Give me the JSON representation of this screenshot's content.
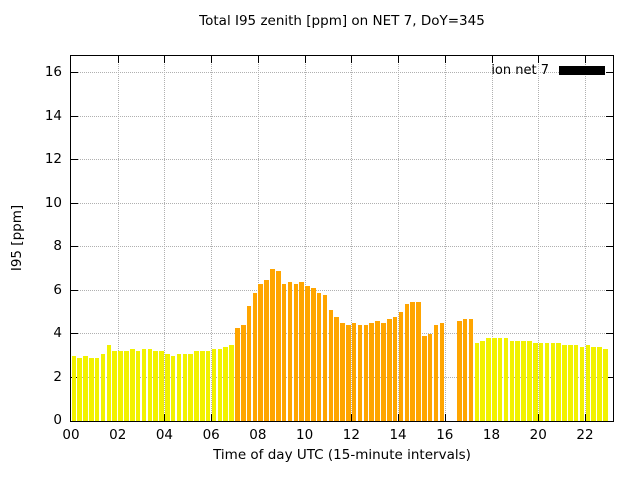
{
  "chart_data": {
    "type": "bar",
    "title": "Total I95 zenith [ppm] on NET 7, DoY=345",
    "xlabel": "Time of day UTC (15-minute intervals)",
    "ylabel": "I95 [ppm]",
    "legend": {
      "label": "ion net 7",
      "swatch_hex": "#000000"
    },
    "grid": true,
    "ylim": [
      0,
      16.8
    ],
    "xlim_hours": [
      0,
      23.2
    ],
    "yticks": [
      0,
      2,
      4,
      6,
      8,
      10,
      12,
      14,
      16
    ],
    "xticks": [
      "00",
      "02",
      "04",
      "06",
      "08",
      "10",
      "12",
      "14",
      "16",
      "18",
      "20",
      "22"
    ],
    "interval_minutes": 15,
    "bar_colors": {
      "yellow": "#f2f200",
      "orange": "#ffa500"
    },
    "orange_period": {
      "from": "07:00",
      "to": "17:00"
    },
    "times": [
      "00:00",
      "00:15",
      "00:30",
      "00:45",
      "01:00",
      "01:15",
      "01:30",
      "01:45",
      "02:00",
      "02:15",
      "02:30",
      "02:45",
      "03:00",
      "03:15",
      "03:30",
      "03:45",
      "04:00",
      "04:15",
      "04:30",
      "04:45",
      "05:00",
      "05:15",
      "05:30",
      "05:45",
      "06:00",
      "06:15",
      "06:30",
      "06:45",
      "07:00",
      "07:15",
      "07:30",
      "07:45",
      "08:00",
      "08:15",
      "08:30",
      "08:45",
      "09:00",
      "09:15",
      "09:30",
      "09:45",
      "10:00",
      "10:15",
      "10:30",
      "10:45",
      "11:00",
      "11:15",
      "11:30",
      "11:45",
      "12:00",
      "12:15",
      "12:30",
      "12:45",
      "13:00",
      "13:15",
      "13:30",
      "13:45",
      "14:00",
      "14:15",
      "14:30",
      "14:45",
      "15:00",
      "15:15",
      "15:30",
      "15:45",
      "16:00",
      "16:15",
      "16:30",
      "16:45",
      "17:00",
      "17:15",
      "17:30",
      "17:45",
      "18:00",
      "18:15",
      "18:30",
      "18:45",
      "19:00",
      "19:15",
      "19:30",
      "19:45",
      "20:00",
      "20:15",
      "20:30",
      "20:45",
      "21:00",
      "21:15",
      "21:30",
      "21:45",
      "22:00",
      "22:15",
      "22:30",
      "22:45"
    ],
    "values": [
      3.0,
      2.9,
      3.0,
      2.9,
      2.9,
      3.1,
      3.5,
      3.2,
      3.2,
      3.2,
      3.3,
      3.2,
      3.3,
      3.3,
      3.2,
      3.2,
      3.1,
      3.0,
      3.1,
      3.1,
      3.1,
      3.2,
      3.2,
      3.2,
      3.3,
      3.3,
      3.4,
      3.5,
      4.3,
      4.4,
      5.3,
      5.9,
      6.3,
      6.5,
      7.0,
      6.9,
      6.3,
      6.4,
      6.3,
      6.4,
      6.2,
      6.1,
      5.9,
      5.8,
      5.1,
      4.8,
      4.5,
      4.4,
      4.5,
      4.4,
      4.4,
      4.5,
      4.6,
      4.5,
      4.7,
      4.8,
      5.0,
      5.4,
      5.5,
      5.5,
      3.9,
      4.0,
      4.4,
      4.5,
      null,
      null,
      4.6,
      4.7,
      4.7,
      3.6,
      3.7,
      3.8,
      3.8,
      3.8,
      3.8,
      3.7,
      3.7,
      3.7,
      3.7,
      3.6,
      3.6,
      3.6,
      3.6,
      3.6,
      3.5,
      3.5,
      3.5,
      3.4,
      3.5,
      3.4,
      3.4,
      3.3
    ]
  }
}
